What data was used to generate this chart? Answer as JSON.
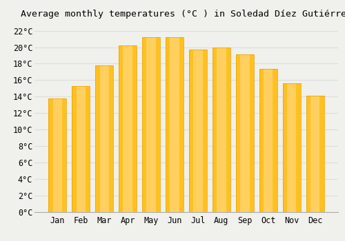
{
  "title": "Average monthly temperatures (°C ) in Soledad Díez Gutiérrez",
  "months": [
    "Jan",
    "Feb",
    "Mar",
    "Apr",
    "May",
    "Jun",
    "Jul",
    "Aug",
    "Sep",
    "Oct",
    "Nov",
    "Dec"
  ],
  "values": [
    13.8,
    15.3,
    17.8,
    20.2,
    21.2,
    21.2,
    19.7,
    20.0,
    19.1,
    17.4,
    15.6,
    14.1
  ],
  "bar_color": "#FFC020",
  "bar_color_light": "#FFD060",
  "bar_edge_color": "#E8A000",
  "background_color": "#F0F0EC",
  "grid_color": "#DDDDDD",
  "yticks": [
    0,
    2,
    4,
    6,
    8,
    10,
    12,
    14,
    16,
    18,
    20,
    22
  ],
  "ylim": [
    0,
    22.8
  ],
  "title_fontsize": 9.5,
  "tick_fontsize": 8.5,
  "font_family": "monospace"
}
